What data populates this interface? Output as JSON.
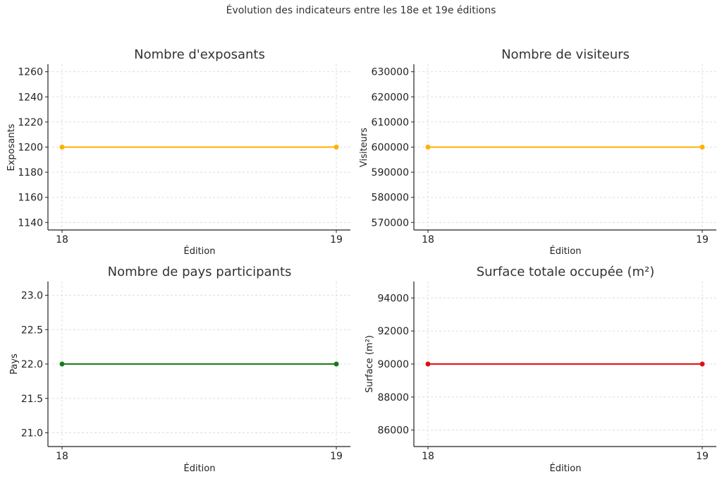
{
  "figure": {
    "suptitle": "Évolution des indicateurs entre les 18e et 19e éditions"
  },
  "chart_data": [
    {
      "type": "line",
      "title": "Nombre d'exposants",
      "xlabel": "Édition",
      "ylabel": "Exposants",
      "categories": [
        "18",
        "19"
      ],
      "series": [
        {
          "values": [
            1200,
            1200
          ],
          "color": "#ffb000"
        }
      ],
      "ylim": [
        1134,
        1266
      ],
      "yticks": [
        1140,
        1160,
        1180,
        1200,
        1220,
        1240,
        1260
      ],
      "ytick_labels": [
        "1140",
        "1160",
        "1180",
        "1200",
        "1220",
        "1240",
        "1260"
      ],
      "grid": true
    },
    {
      "type": "line",
      "title": "Nombre de visiteurs",
      "xlabel": "Édition",
      "ylabel": "Visiteurs",
      "categories": [
        "18",
        "19"
      ],
      "series": [
        {
          "values": [
            600000,
            600000
          ],
          "color": "#ffb000"
        }
      ],
      "ylim": [
        567000,
        633000
      ],
      "yticks": [
        570000,
        580000,
        590000,
        600000,
        610000,
        620000,
        630000
      ],
      "ytick_labels": [
        "570000",
        "580000",
        "590000",
        "600000",
        "610000",
        "620000",
        "630000"
      ],
      "grid": true
    },
    {
      "type": "line",
      "title": "Nombre de pays participants",
      "xlabel": "Édition",
      "ylabel": "Pays",
      "categories": [
        "18",
        "19"
      ],
      "series": [
        {
          "values": [
            22,
            22
          ],
          "color": "#1a7a1a"
        }
      ],
      "ylim": [
        20.8,
        23.2
      ],
      "yticks": [
        21.0,
        21.5,
        22.0,
        22.5,
        23.0
      ],
      "ytick_labels": [
        "21.0",
        "21.5",
        "22.0",
        "22.5",
        "23.0"
      ],
      "grid": true
    },
    {
      "type": "line",
      "title": "Surface totale occupée (m²)",
      "xlabel": "Édition",
      "ylabel": "Surface (m²)",
      "categories": [
        "18",
        "19"
      ],
      "series": [
        {
          "values": [
            90000,
            90000
          ],
          "color": "#e01010"
        }
      ],
      "ylim": [
        85000,
        95000
      ],
      "yticks": [
        86000,
        88000,
        90000,
        92000,
        94000
      ],
      "ytick_labels": [
        "86000",
        "88000",
        "90000",
        "92000",
        "94000"
      ],
      "grid": true
    }
  ]
}
